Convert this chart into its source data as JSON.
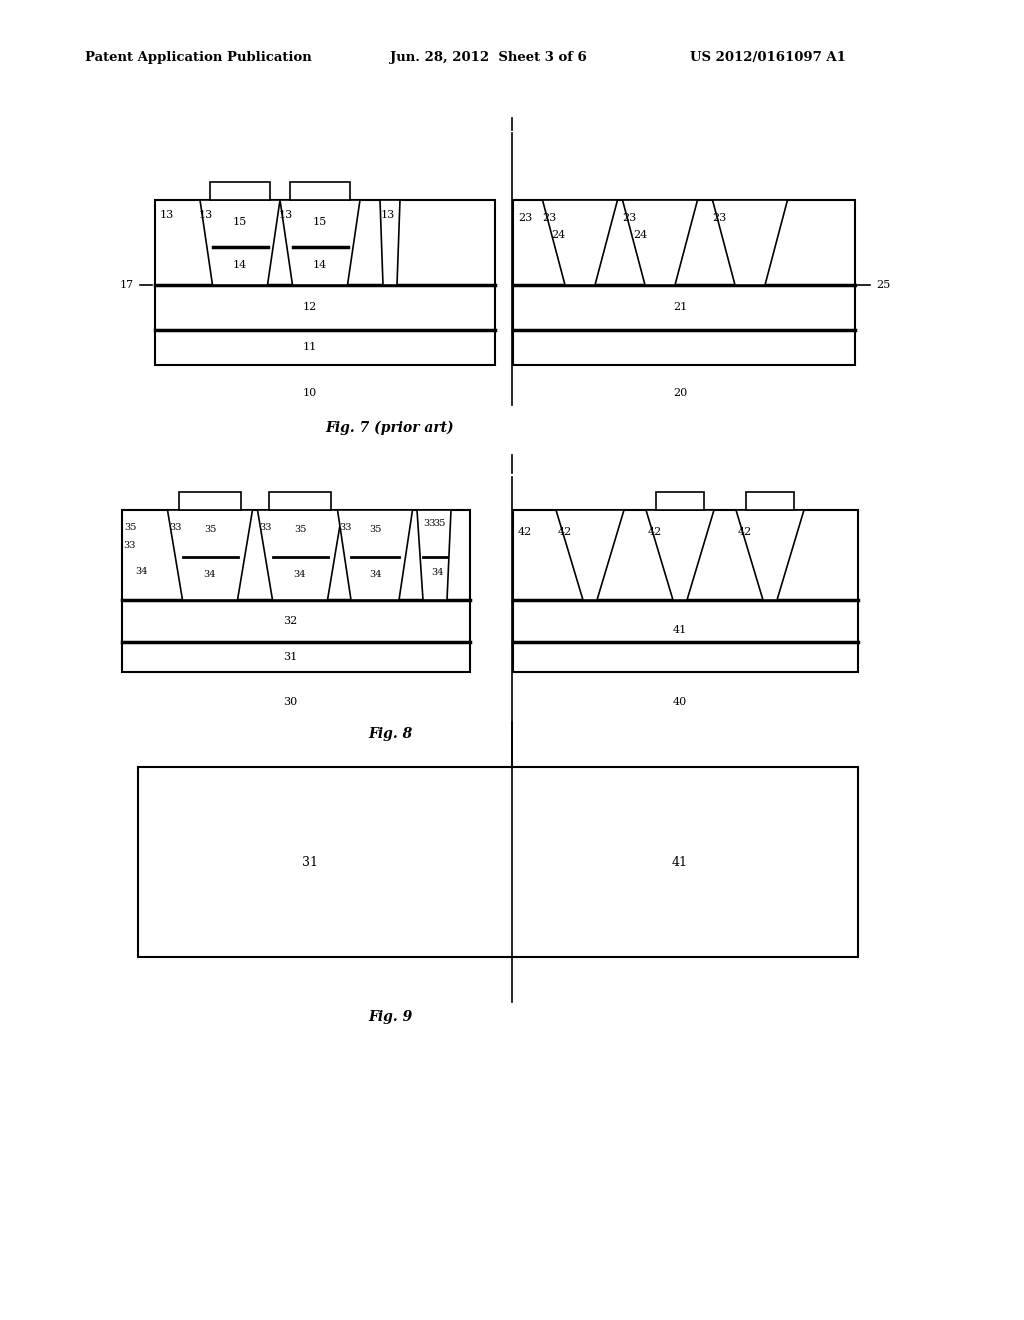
{
  "header_left": "Patent Application Publication",
  "header_mid": "Jun. 28, 2012  Sheet 3 of 6",
  "header_right": "US 2012/0161097 A1",
  "bg_color": "#ffffff",
  "fig7_caption": "Fig. 7 (prior art)",
  "fig8_caption": "Fig. 8",
  "fig9_caption": "Fig. 9"
}
